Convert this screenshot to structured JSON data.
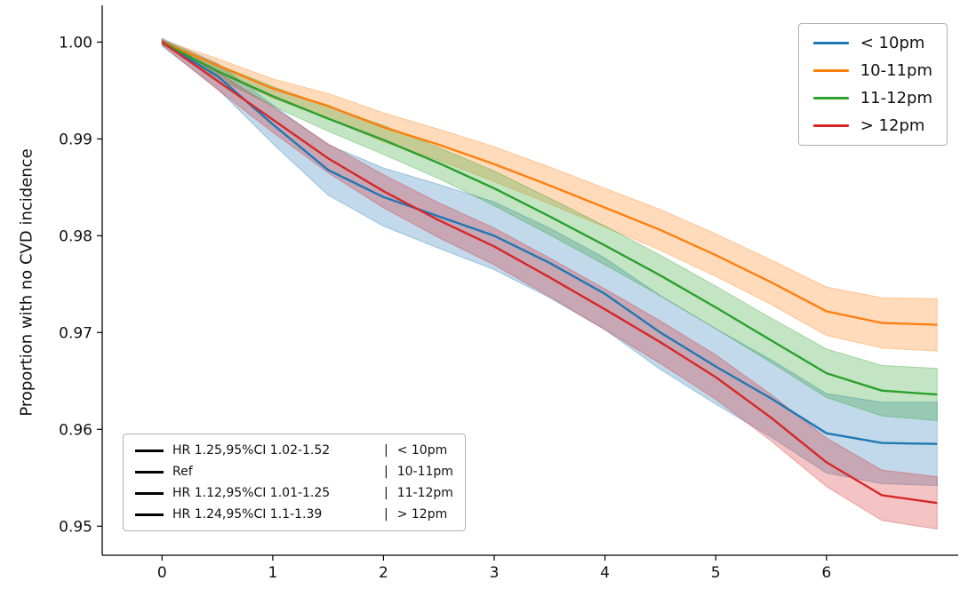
{
  "figure": {
    "background": "#ffffff",
    "text_color": "#111111",
    "axis_color": "#000000"
  },
  "chart_data": {
    "type": "line",
    "subtype": "kaplan-meier-survival-with-ci-bands",
    "title": "",
    "xlabel": "",
    "ylabel": "Proportion with no CVD incidence",
    "grid": false,
    "legend_position": "upper right",
    "xlim": [
      -0.54,
      7.19
    ],
    "ylim": [
      0.947,
      1.0038
    ],
    "xticks": {
      "values": [
        0,
        1,
        2,
        3,
        4,
        5,
        6
      ],
      "labels": [
        "0",
        "1",
        "2",
        "3",
        "4",
        "5",
        "6"
      ]
    },
    "yticks": {
      "values": [
        1.0,
        0.99,
        0.98,
        0.97,
        0.96,
        0.95
      ],
      "labels": [
        "1.00",
        "0.99",
        "0.98",
        "0.97",
        "0.96",
        "0.95"
      ]
    },
    "band_opacity": 0.28,
    "x": [
      0,
      0.5,
      1,
      1.5,
      2,
      2.5,
      3,
      3.5,
      4,
      4.5,
      5,
      5.5,
      6,
      6.5,
      7
    ],
    "series": [
      {
        "name": "< 10pm",
        "color": "#1f77b4",
        "values": [
          1.0,
          0.9965,
          0.9915,
          0.9868,
          0.984,
          0.982,
          0.98,
          0.9772,
          0.974,
          0.97,
          0.9665,
          0.9632,
          0.9596,
          0.9586,
          0.9585
        ],
        "ci": [
          0.0004,
          0.0013,
          0.002,
          0.0026,
          0.003,
          0.0033,
          0.0035,
          0.0036,
          0.0037,
          0.0038,
          0.0039,
          0.004,
          0.0041,
          0.0042,
          0.0043
        ]
      },
      {
        "name": "10-11pm",
        "color": "#ff7f0e",
        "values": [
          1.0,
          0.9976,
          0.9952,
          0.9934,
          0.9912,
          0.9894,
          0.9874,
          0.9852,
          0.9829,
          0.9806,
          0.978,
          0.9752,
          0.9722,
          0.971,
          0.9708
        ],
        "ci": [
          0.0002,
          0.0007,
          0.001,
          0.0013,
          0.0015,
          0.0016,
          0.0018,
          0.0019,
          0.002,
          0.0021,
          0.0022,
          0.0023,
          0.0025,
          0.0026,
          0.0027
        ]
      },
      {
        "name": "11-12pm",
        "color": "#2ca02c",
        "values": [
          1.0,
          0.997,
          0.9944,
          0.9921,
          0.9899,
          0.9875,
          0.9849,
          0.982,
          0.979,
          0.9759,
          0.9726,
          0.9692,
          0.9658,
          0.964,
          0.9636
        ],
        "ci": [
          0.0002,
          0.0007,
          0.001,
          0.0013,
          0.0015,
          0.0016,
          0.0018,
          0.0019,
          0.002,
          0.0021,
          0.0022,
          0.0023,
          0.0025,
          0.0026,
          0.0027
        ]
      },
      {
        "name": "> 12pm",
        "color": "#d62728",
        "values": [
          1.0,
          0.996,
          0.992,
          0.988,
          0.9846,
          0.9816,
          0.9789,
          0.9757,
          0.9724,
          0.969,
          0.9654,
          0.9612,
          0.9566,
          0.9532,
          0.9524
        ],
        "ci": [
          0.0003,
          0.0009,
          0.0013,
          0.0015,
          0.0017,
          0.0018,
          0.0019,
          0.002,
          0.0021,
          0.0022,
          0.0023,
          0.0024,
          0.0025,
          0.0026,
          0.0027
        ]
      }
    ]
  },
  "hr_legend": {
    "line_color": "#000000",
    "separator": "|",
    "items": [
      {
        "hr": "HR 1.25,95%CI 1.02-1.52",
        "group": "< 10pm"
      },
      {
        "hr": "Ref",
        "group": "10-11pm"
      },
      {
        "hr": "HR 1.12,95%CI 1.01-1.25",
        "group": "11-12pm"
      },
      {
        "hr": "HR 1.24,95%CI 1.1-1.39",
        "group": "> 12pm"
      }
    ]
  }
}
